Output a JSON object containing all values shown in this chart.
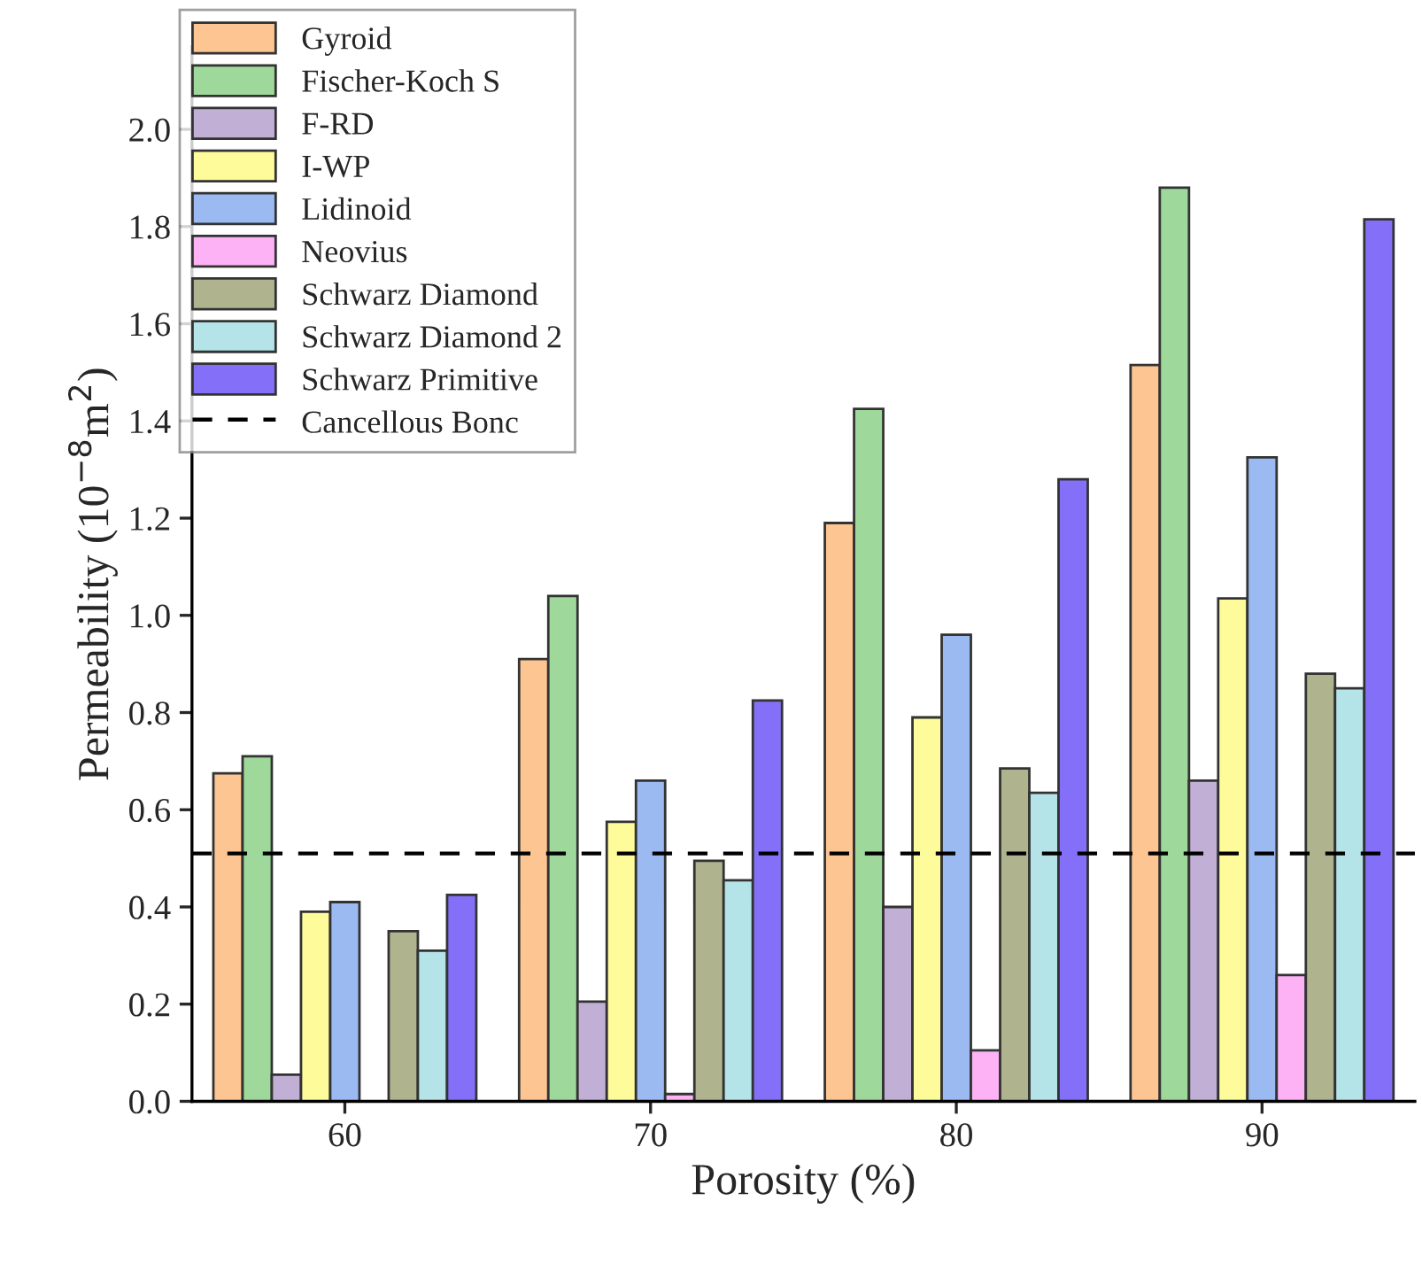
{
  "chart_data": {
    "type": "bar",
    "xlabel": "Porosity (%)",
    "ylabel": "Permeability (10$^{−8}$m$^{2}$)",
    "categories": [
      "60",
      "70",
      "80",
      "90"
    ],
    "series": [
      {
        "name": "Gyroid",
        "color": "#fdc591",
        "values": [
          0.675,
          0.91,
          1.19,
          1.515
        ]
      },
      {
        "name": "Fischer-Koch S",
        "color": "#9ed89a",
        "values": [
          0.71,
          1.04,
          1.425,
          1.88
        ]
      },
      {
        "name": "F-RD",
        "color": "#c2afd6",
        "values": [
          0.055,
          0.205,
          0.4,
          0.66
        ]
      },
      {
        "name": "I-WP",
        "color": "#fdfb9a",
        "values": [
          0.39,
          0.575,
          0.79,
          1.035
        ]
      },
      {
        "name": "Lidinoid",
        "color": "#9bbaf2",
        "values": [
          0.41,
          0.66,
          0.96,
          1.325
        ]
      },
      {
        "name": "Neovius",
        "color": "#fcb2f4",
        "values": [
          null,
          0.015,
          0.105,
          0.26
        ]
      },
      {
        "name": "Schwarz Diamond",
        "color": "#b0b48e",
        "values": [
          0.35,
          0.495,
          0.685,
          0.88
        ]
      },
      {
        "name": "Schwarz Diamond 2",
        "color": "#b4e3e8",
        "values": [
          0.31,
          0.455,
          0.635,
          0.85
        ]
      },
      {
        "name": "Schwarz Primitive",
        "color": "#8470f8",
        "values": [
          0.425,
          0.825,
          1.28,
          1.815
        ]
      }
    ],
    "ref_lines": [
      {
        "axis": "y",
        "value": 0.51,
        "label": "Cancellous Bonc",
        "color": "#000000",
        "line_style": "dashed"
      }
    ],
    "ylim": [
      0,
      2.17
    ],
    "yticks": [
      {
        "value": 0,
        "label": "0.0"
      },
      {
        "value": 0.2,
        "label": "0.2"
      },
      {
        "value": 0.4,
        "label": "0.4"
      },
      {
        "value": 0.6,
        "label": "0.6"
      },
      {
        "value": 0.8,
        "label": "0.8"
      },
      {
        "value": 1.0,
        "label": "1.0"
      },
      {
        "value": 1.2,
        "label": "1.2"
      },
      {
        "value": 1.4,
        "label": "1.4"
      },
      {
        "value": 1.6,
        "label": "1.6"
      },
      {
        "value": 1.8,
        "label": "1.8"
      },
      {
        "value": 2.0,
        "label": "2.0"
      }
    ],
    "grid": false,
    "legend": "top left"
  }
}
